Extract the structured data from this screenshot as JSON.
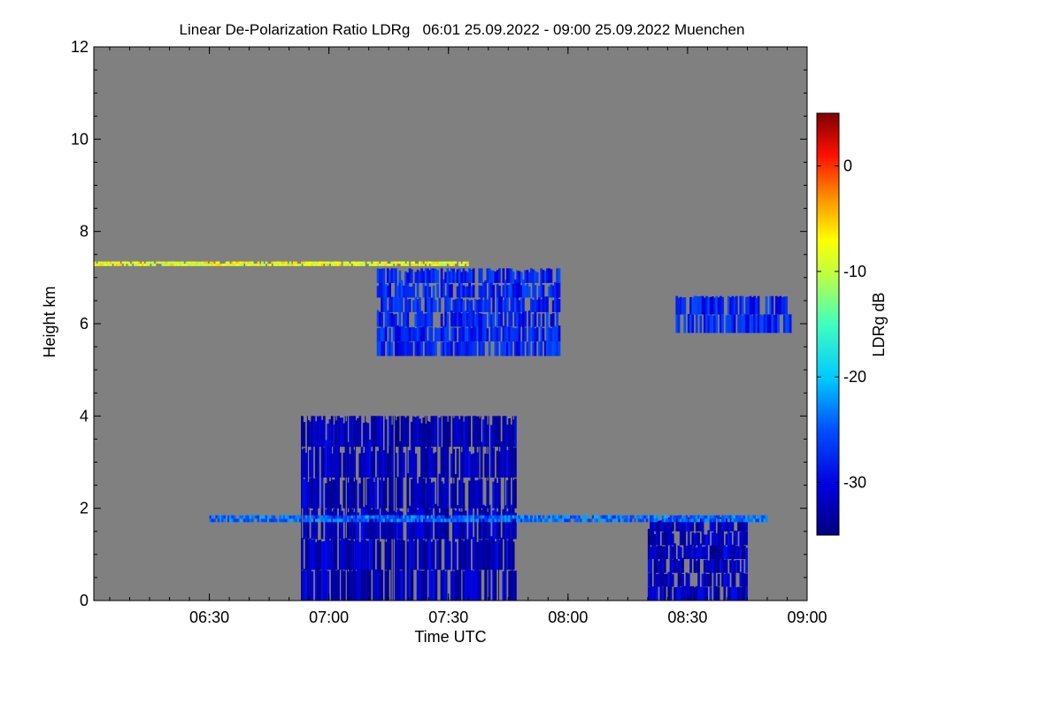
{
  "chart_data": {
    "type": "heatmap",
    "title": "Linear De-Polarization Ratio LDRg   06:01 25.09.2022 - 09:00 25.09.2022 Muenchen",
    "xlabel": "Time UTC",
    "ylabel": "Height km",
    "x_range": [
      "06:01",
      "09:00"
    ],
    "x_ticks": [
      "06:30",
      "07:00",
      "07:30",
      "08:00",
      "08:30",
      "09:00"
    ],
    "ylim": [
      0,
      12
    ],
    "y_ticks": [
      "0",
      "2",
      "4",
      "6",
      "8",
      "10",
      "12"
    ],
    "colorbar": {
      "label": "LDRg dB",
      "range": [
        -35,
        5
      ],
      "ticks": [
        "0",
        "-10",
        "-20",
        "-30"
      ]
    },
    "colors": {
      "background": "#808080",
      "low": "#0000b0",
      "high": "#8b0000"
    },
    "features": [
      {
        "time_start": "06:53",
        "time_end": "07:47",
        "height_base_km": 0.0,
        "height_top_km": 4.0,
        "ldr_db": -32
      },
      {
        "time_start": "08:20",
        "time_end": "08:45",
        "height_base_km": 0.0,
        "height_top_km": 1.8,
        "ldr_db": -32
      },
      {
        "time_start": "07:12",
        "time_end": "07:58",
        "height_base_km": 5.3,
        "height_top_km": 7.2,
        "ldr_db": -28
      },
      {
        "time_start": "08:27",
        "time_end": "08:56",
        "height_base_km": 5.8,
        "height_top_km": 6.6,
        "ldr_db": -28
      },
      {
        "time_start": "06:30",
        "time_end": "08:50",
        "height_base_km": 1.7,
        "height_top_km": 1.85,
        "ldr_db": -24
      },
      {
        "time_start": "06:01",
        "time_end": "07:35",
        "height_base_km": 7.25,
        "height_top_km": 7.35,
        "ldr_db": -8
      }
    ]
  }
}
